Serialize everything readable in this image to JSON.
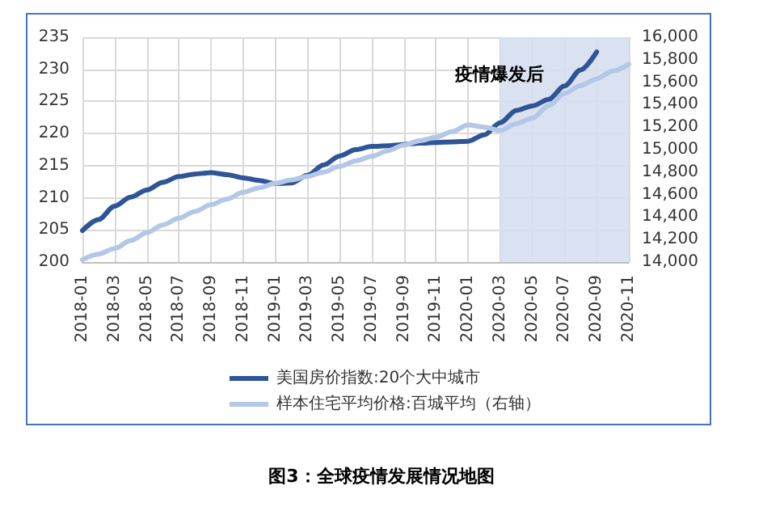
{
  "chart_data": {
    "type": "line",
    "categories": [
      "2018-01",
      null,
      "2018-03",
      null,
      "2018-05",
      null,
      "2018-07",
      null,
      "2018-09",
      null,
      "2018-11",
      null,
      "2019-01",
      null,
      "2019-03",
      null,
      "2019-05",
      null,
      "2019-07",
      null,
      "2019-09",
      null,
      "2019-11",
      null,
      "2020-01",
      null,
      "2020-03",
      null,
      "2020-05",
      null,
      "2020-07",
      null,
      "2020-09",
      null,
      "2020-11"
    ],
    "series": [
      {
        "name": "美国房价指数:20个大中城市",
        "color": "#2f5597",
        "values": [
          204.9,
          206.6,
          208.7,
          210.1,
          211.2,
          212.4,
          213.3,
          213.7,
          213.9,
          213.6,
          213.1,
          212.7,
          212.2,
          212.3,
          213.5,
          215.1,
          216.5,
          217.5,
          218.0,
          218.1,
          218.3,
          218.5,
          218.6,
          218.7,
          218.8,
          219.8,
          221.7,
          223.6,
          224.3,
          225.3,
          227.4,
          229.9,
          232.7,
          null,
          null
        ]
      },
      {
        "name": "样本住宅平均价格:百城平均（右轴）",
        "color": "#b4c7e7",
        "axis": "y2",
        "values": [
          14020,
          14070,
          14120,
          14190,
          14260,
          14330,
          14390,
          14450,
          14510,
          14560,
          14620,
          14660,
          14700,
          14730,
          14760,
          14800,
          14850,
          14900,
          14940,
          14990,
          15040,
          15080,
          15110,
          15160,
          15220,
          15200,
          15170,
          15230,
          15280,
          15390,
          15500,
          15570,
          15630,
          15700,
          15760
        ]
      }
    ],
    "ylim": [
      200,
      235
    ],
    "yticks": [
      200,
      205,
      210,
      215,
      220,
      225,
      230,
      235
    ],
    "y2lim": [
      14000,
      16000
    ],
    "y2ticks": [
      {
        "value": 14000,
        "label": "14,000"
      },
      {
        "value": 14200,
        "label": "14,200"
      },
      {
        "value": 14400,
        "label": "14,400"
      },
      {
        "value": 14600,
        "label": "14,600"
      },
      {
        "value": 14800,
        "label": "14,800"
      },
      {
        "value": 15000,
        "label": "15,000"
      },
      {
        "value": 15200,
        "label": "15,200"
      },
      {
        "value": 15400,
        "label": "15,400"
      },
      {
        "value": 15600,
        "label": "15,600"
      },
      {
        "value": 15800,
        "label": "15,800"
      },
      {
        "value": 16000,
        "label": "16,000"
      }
    ],
    "bands": [
      {
        "axis": "x",
        "from": "2020-03",
        "to": "2020-11",
        "label": "疫情爆发后",
        "color": "#d6dff0"
      }
    ],
    "annotations": [
      "图3：全球疫情发展情况地图"
    ],
    "grid": true,
    "legend": "bottom",
    "marker": "none",
    "line_style": "solid"
  }
}
